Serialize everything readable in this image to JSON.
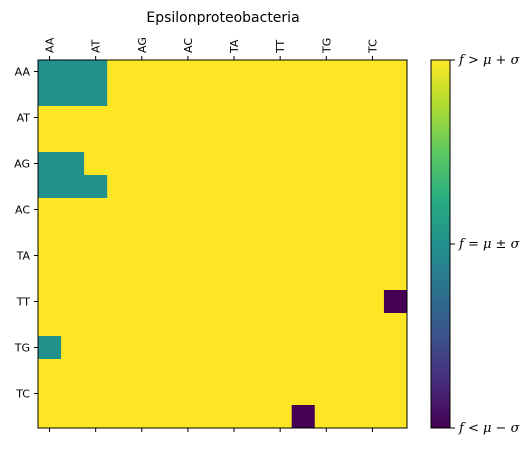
{
  "chart_data": {
    "type": "heatmap",
    "title": "Epsilonproteobacteria",
    "x_tick_labels": [
      "AA",
      "AT",
      "AG",
      "AC",
      "TA",
      "TT",
      "TG",
      "TC"
    ],
    "y_tick_labels": [
      "AA",
      "AT",
      "AG",
      "AC",
      "TA",
      "TT",
      "TG",
      "TC"
    ],
    "grid_rows": 16,
    "grid_cols": 16,
    "levels": {
      "high": 1,
      "mid": 0,
      "low": -1
    },
    "cells": [
      [
        0,
        0,
        0,
        1,
        1,
        1,
        1,
        1,
        1,
        1,
        1,
        1,
        1,
        1,
        1,
        1
      ],
      [
        0,
        0,
        0,
        1,
        1,
        1,
        1,
        1,
        1,
        1,
        1,
        1,
        1,
        1,
        1,
        1
      ],
      [
        1,
        1,
        1,
        1,
        1,
        1,
        1,
        1,
        1,
        1,
        1,
        1,
        1,
        1,
        1,
        1
      ],
      [
        1,
        1,
        1,
        1,
        1,
        1,
        1,
        1,
        1,
        1,
        1,
        1,
        1,
        1,
        1,
        1
      ],
      [
        0,
        0,
        1,
        1,
        1,
        1,
        1,
        1,
        1,
        1,
        1,
        1,
        1,
        1,
        1,
        1
      ],
      [
        0,
        0,
        0,
        1,
        1,
        1,
        1,
        1,
        1,
        1,
        1,
        1,
        1,
        1,
        1,
        1
      ],
      [
        1,
        1,
        1,
        1,
        1,
        1,
        1,
        1,
        1,
        1,
        1,
        1,
        1,
        1,
        1,
        1
      ],
      [
        1,
        1,
        1,
        1,
        1,
        1,
        1,
        1,
        1,
        1,
        1,
        1,
        1,
        1,
        1,
        1
      ],
      [
        1,
        1,
        1,
        1,
        1,
        1,
        1,
        1,
        1,
        1,
        1,
        1,
        1,
        1,
        1,
        1
      ],
      [
        1,
        1,
        1,
        1,
        1,
        1,
        1,
        1,
        1,
        1,
        1,
        1,
        1,
        1,
        1,
        1
      ],
      [
        1,
        1,
        1,
        1,
        1,
        1,
        1,
        1,
        1,
        1,
        1,
        1,
        1,
        1,
        1,
        -1
      ],
      [
        1,
        1,
        1,
        1,
        1,
        1,
        1,
        1,
        1,
        1,
        1,
        1,
        1,
        1,
        1,
        1
      ],
      [
        0,
        1,
        1,
        1,
        1,
        1,
        1,
        1,
        1,
        1,
        1,
        1,
        1,
        1,
        1,
        1
      ],
      [
        1,
        1,
        1,
        1,
        1,
        1,
        1,
        1,
        1,
        1,
        1,
        1,
        1,
        1,
        1,
        1
      ],
      [
        1,
        1,
        1,
        1,
        1,
        1,
        1,
        1,
        1,
        1,
        1,
        1,
        1,
        1,
        1,
        1
      ],
      [
        1,
        1,
        1,
        1,
        1,
        1,
        1,
        1,
        1,
        1,
        1,
        -1,
        1,
        1,
        1,
        1
      ]
    ],
    "grid": false,
    "legend": "colorbar-right",
    "colorbar": {
      "colormap": "viridis",
      "labels": [
        "f > μ + σ",
        "f = μ ± σ",
        "f < μ − σ"
      ]
    },
    "colors": {
      "high": "#fde725",
      "mid": "#21918c",
      "low": "#440154"
    }
  }
}
